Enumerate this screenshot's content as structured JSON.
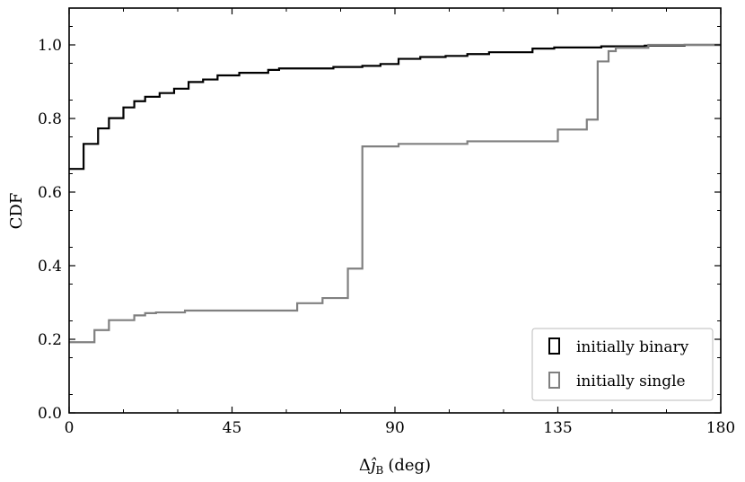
{
  "chart_data": {
    "type": "line",
    "step": true,
    "title": "",
    "xlabel": "Δĵ_B (deg)",
    "xlabel_parts": {
      "delta": "Δ",
      "symbol": "ĵ",
      "subscript": "B",
      "unit": "(deg)"
    },
    "ylabel": "CDF",
    "xlim": [
      0,
      180
    ],
    "ylim": [
      0,
      1.1
    ],
    "xticks": [
      0,
      45,
      90,
      135,
      180
    ],
    "xtick_labels": [
      "0",
      "45",
      "90",
      "135",
      "180"
    ],
    "yticks": [
      0.0,
      0.2,
      0.4,
      0.6,
      0.8,
      1.0
    ],
    "ytick_labels": [
      "0.0",
      "0.2",
      "0.4",
      "0.6",
      "0.8",
      "1.0"
    ],
    "grid": false,
    "legend_position": "bottom-right",
    "series": [
      {
        "name": "initially binary",
        "color": "#000000",
        "x": [
          0,
          4,
          8,
          11,
          15,
          18,
          21,
          25,
          29,
          33,
          37,
          41,
          47,
          55,
          58,
          60,
          73,
          81,
          86,
          91,
          97,
          104,
          110,
          116,
          128,
          134,
          147,
          159,
          170,
          180
        ],
        "y": [
          0.663,
          0.731,
          0.773,
          0.801,
          0.83,
          0.847,
          0.859,
          0.869,
          0.881,
          0.899,
          0.906,
          0.917,
          0.924,
          0.932,
          0.936,
          0.936,
          0.94,
          0.943,
          0.948,
          0.962,
          0.967,
          0.97,
          0.975,
          0.98,
          0.99,
          0.993,
          0.996,
          0.998,
          1.0,
          1.0
        ]
      },
      {
        "name": "initially single",
        "color": "#808080",
        "x": [
          0,
          7,
          11,
          18,
          21,
          24,
          32,
          40,
          63,
          70,
          77,
          81,
          91,
          110,
          135,
          143,
          146,
          149,
          151,
          160,
          180
        ],
        "y": [
          0.192,
          0.225,
          0.252,
          0.265,
          0.271,
          0.273,
          0.278,
          0.278,
          0.298,
          0.312,
          0.392,
          0.724,
          0.731,
          0.738,
          0.77,
          0.797,
          0.955,
          0.983,
          0.992,
          1.0,
          1.0
        ]
      }
    ]
  }
}
